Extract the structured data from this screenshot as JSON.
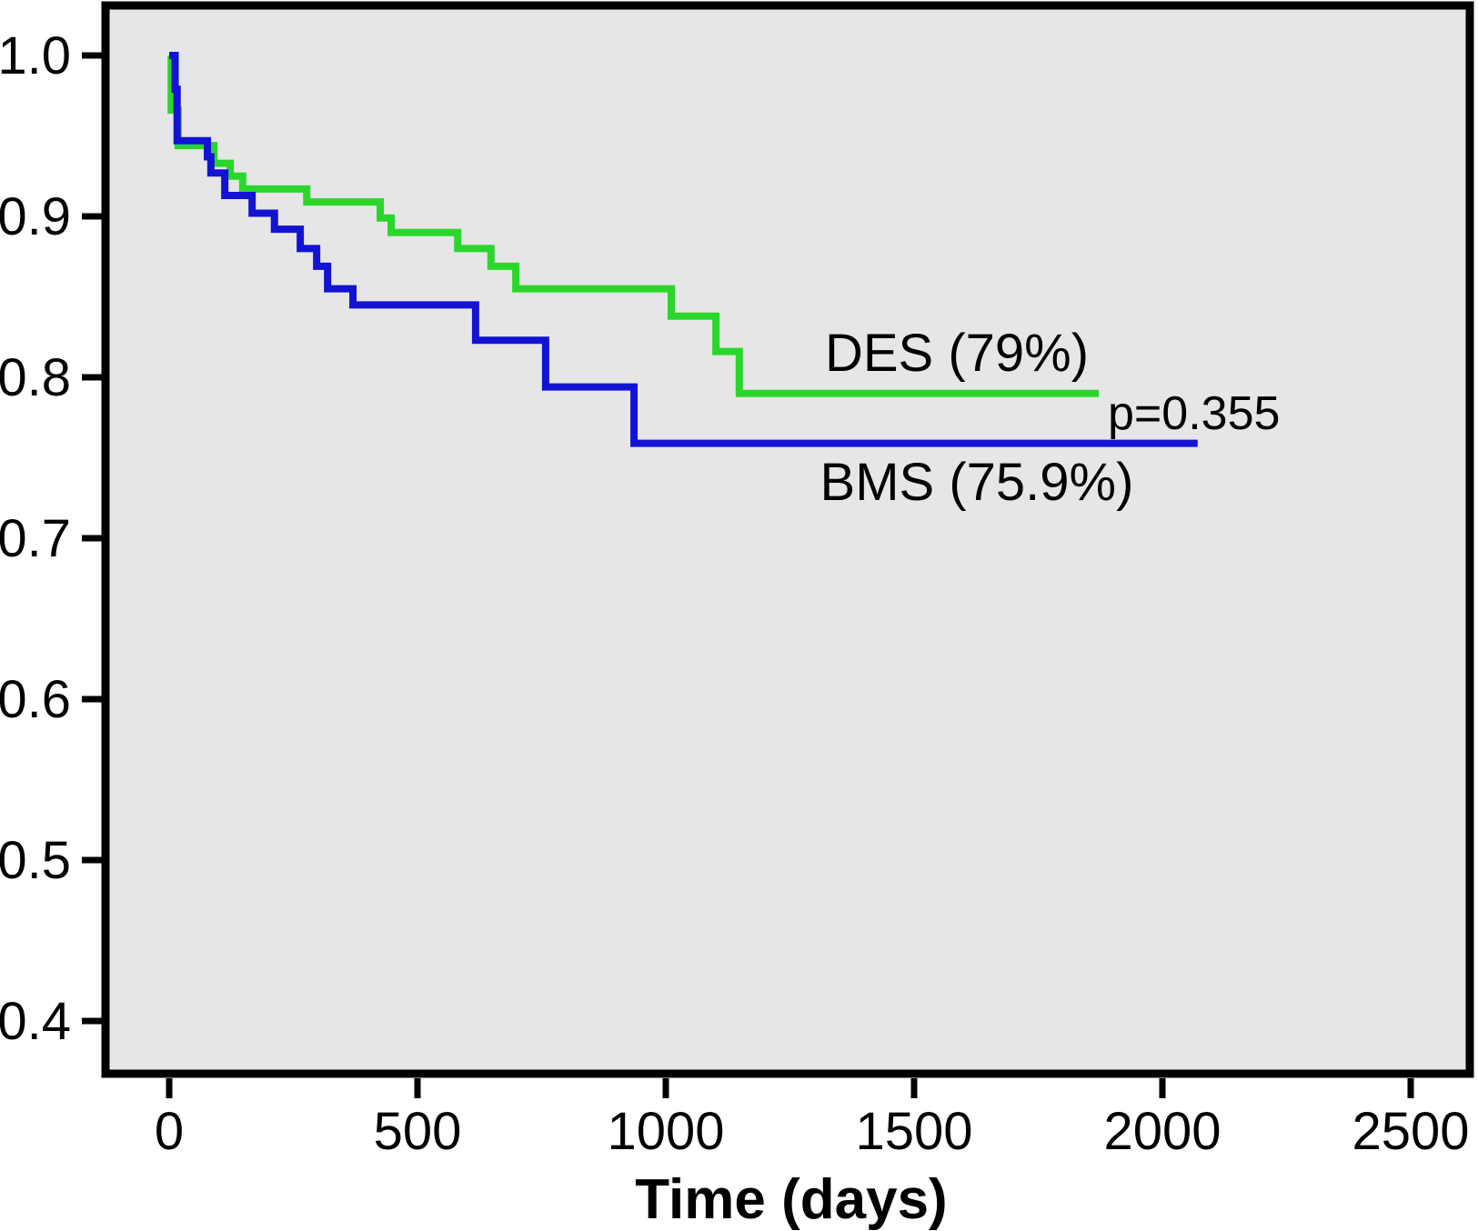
{
  "figure": {
    "background_color": "#ffffff",
    "plot_background_color": "#e6e6e6",
    "border_color": "#000000"
  },
  "annotations": {
    "des_label": "DES (79%)",
    "bms_label": "BMS (75.9%)",
    "p_value": "p=0.355"
  },
  "axes": {
    "x": {
      "title": "Time (days)",
      "tick_labels": [
        "0",
        "500",
        "1000",
        "1500",
        "2000",
        "2500"
      ],
      "tick_values": [
        0,
        500,
        1000,
        1500,
        2000,
        2500
      ]
    },
    "y": {
      "title": "",
      "tick_labels": [
        "1.0",
        "0.9",
        "0.8",
        "0.7",
        "0.6",
        "0.5",
        "0.4"
      ],
      "tick_values": [
        1.0,
        0.9,
        0.8,
        0.7,
        0.6,
        0.5,
        0.4
      ]
    }
  },
  "chart_data": {
    "type": "line",
    "subtype": "kaplan-meier-step",
    "title": "",
    "xlabel": "Time (days)",
    "ylabel": "",
    "xlim": [
      -140,
      2630
    ],
    "ylim": [
      0.365,
      1.035
    ],
    "grid": false,
    "legend_position": "inline-annotations",
    "p_value_text": "p=0.355",
    "series": [
      {
        "name": "DES",
        "label": "DES (79%)",
        "color": "#2bd62b",
        "final_survival": 0.79,
        "points_x_days": [
          0,
          4,
          18,
          90,
          123,
          148,
          277,
          425,
          447,
          581,
          648,
          698,
          1011,
          1101,
          1148,
          1872
        ],
        "points_y_survival": [
          1.0,
          0.966,
          0.944,
          0.933,
          0.925,
          0.917,
          0.909,
          0.899,
          0.89,
          0.88,
          0.869,
          0.855,
          0.838,
          0.816,
          0.79,
          0.79
        ]
      },
      {
        "name": "BMS",
        "label": "BMS (75.9%)",
        "color": "#1313d4",
        "final_survival": 0.759,
        "points_x_days": [
          0,
          12,
          16,
          77,
          84,
          112,
          167,
          212,
          264,
          297,
          319,
          370,
          617,
          758,
          936,
          2071
        ],
        "points_y_survival": [
          1.0,
          0.979,
          0.947,
          0.937,
          0.927,
          0.913,
          0.902,
          0.892,
          0.88,
          0.869,
          0.855,
          0.845,
          0.823,
          0.794,
          0.759,
          0.759
        ]
      }
    ]
  }
}
